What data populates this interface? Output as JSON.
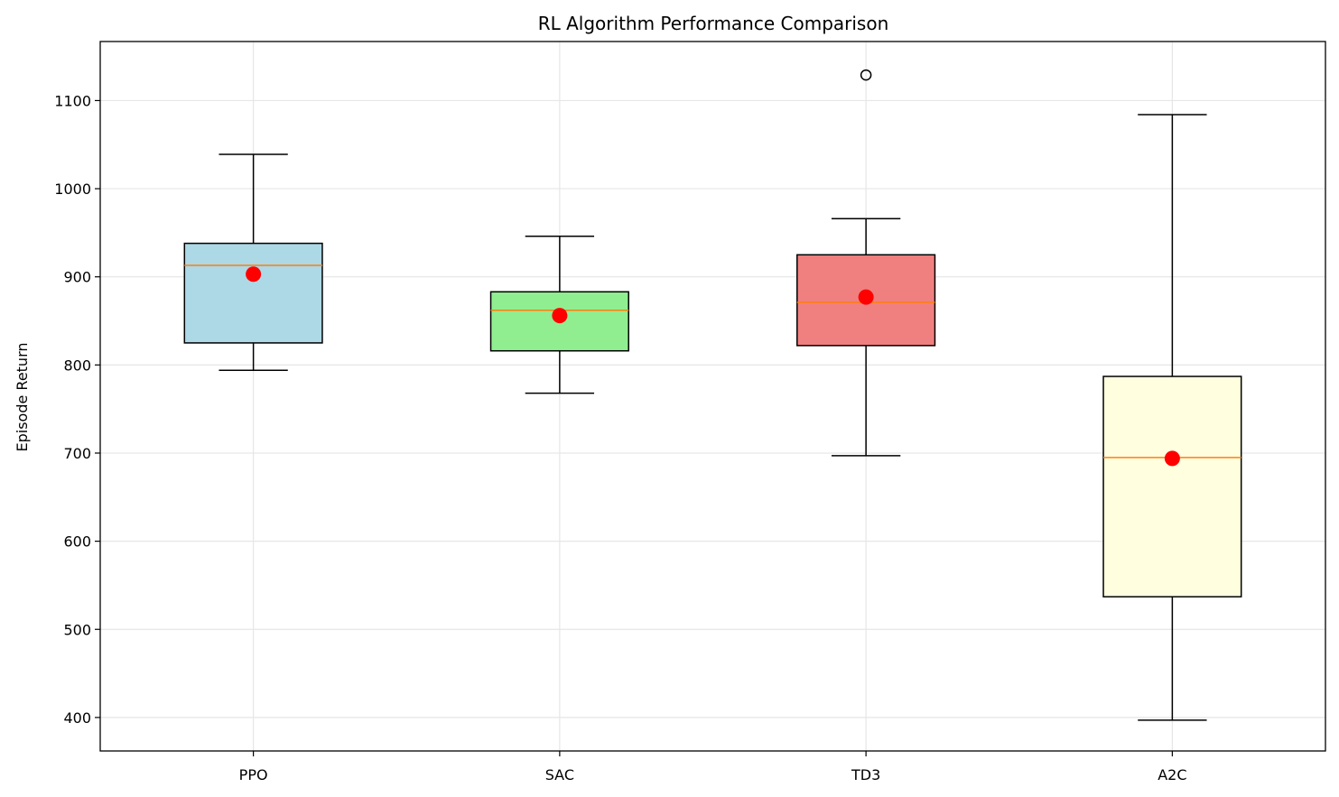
{
  "chart_data": {
    "type": "box",
    "title": "RL Algorithm Performance Comparison",
    "xlabel": "",
    "ylabel": "Episode Return",
    "ylim": [
      362,
      1167
    ],
    "yticks": [
      400,
      500,
      600,
      700,
      800,
      900,
      1000,
      1100
    ],
    "grid": true,
    "categories": [
      "PPO",
      "SAC",
      "TD3",
      "A2C"
    ],
    "boxes": [
      {
        "category": "PPO",
        "whisker_low": 794,
        "q1": 825,
        "median": 913,
        "q3": 938,
        "whisker_high": 1039,
        "mean": 903,
        "fliers": [],
        "fill": "#add8e6"
      },
      {
        "category": "SAC",
        "whisker_low": 768,
        "q1": 816,
        "median": 862,
        "q3": 883,
        "whisker_high": 946,
        "mean": 856,
        "fliers": [],
        "fill": "#90ee90"
      },
      {
        "category": "TD3",
        "whisker_low": 697,
        "q1": 822,
        "median": 871,
        "q3": 925,
        "whisker_high": 966,
        "mean": 877,
        "fliers": [
          1129
        ],
        "fill": "#f08080"
      },
      {
        "category": "A2C",
        "whisker_low": 397,
        "q1": 537,
        "median": 695,
        "q3": 787,
        "whisker_high": 1084,
        "mean": 694,
        "fliers": [],
        "fill": "#ffffe0"
      }
    ],
    "median_color": "#ff7f0e",
    "mean_color": "#ff0000"
  }
}
